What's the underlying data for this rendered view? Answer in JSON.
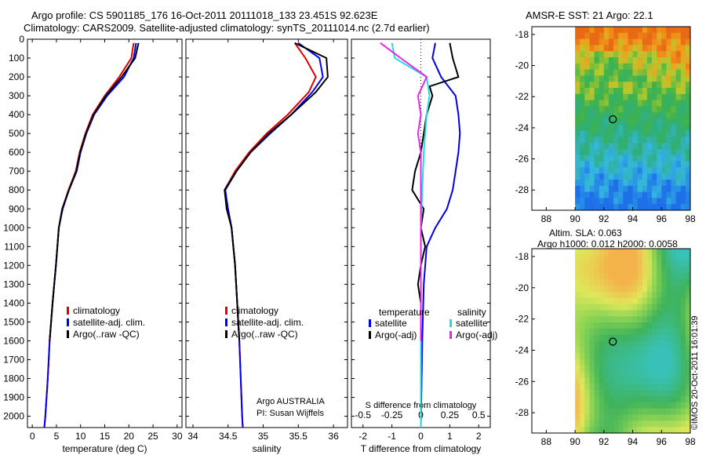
{
  "header": {
    "line1": "Argo profile: CS 5901185_176 16-Oct-2011 20111018_133 23.451S 92.623E",
    "line2": "Climatology: CARS2009. Satellite-adjusted climatology: synTS_20111014.nc (2.7d earlier)"
  },
  "stamp": "©IMOS 20-Oct-2011 16:01:39",
  "colors": {
    "climatology": "#e00000",
    "satellite": "#0000ee",
    "argo": "#000000",
    "salinity_sat": "#22dddd",
    "salinity_argo": "#ee22ee"
  },
  "chart_data": [
    {
      "type": "line",
      "xlabel": "temperature (deg C)",
      "xticks": [
        "0",
        "5",
        "10",
        "15",
        "20",
        "25",
        "30"
      ],
      "xlim": [
        -1,
        31
      ],
      "ylim": [
        0,
        2060
      ],
      "yticks": [
        "0",
        "100",
        "200",
        "300",
        "400",
        "500",
        "600",
        "700",
        "800",
        "900",
        "1000",
        "1100",
        "1200",
        "1300",
        "1400",
        "1500",
        "1600",
        "1700",
        "1800",
        "1900",
        "2000"
      ],
      "legend": [
        "climatology",
        "satellite-adj. clim.",
        "Argo(..raw -QC)"
      ],
      "series": [
        {
          "name": "climatology",
          "points": [
            [
              21,
              20
            ],
            [
              20.5,
              100
            ],
            [
              18,
              200
            ],
            [
              15,
              300
            ],
            [
              12.5,
              400
            ],
            [
              11,
              500
            ],
            [
              9.8,
              600
            ],
            [
              9,
              700
            ],
            [
              7.5,
              800
            ],
            [
              6.2,
              900
            ],
            [
              5.5,
              1000
            ],
            [
              4.9,
              1200
            ],
            [
              4.2,
              1400
            ],
            [
              3.6,
              1600
            ],
            [
              3.2,
              1800
            ],
            [
              2.7,
              2000
            ],
            [
              2.5,
              2060
            ]
          ]
        },
        {
          "name": "satellite-adj. clim.",
          "points": [
            [
              21.5,
              20
            ],
            [
              21,
              100
            ],
            [
              19,
              200
            ],
            [
              15.5,
              300
            ],
            [
              12.8,
              400
            ],
            [
              11.2,
              500
            ],
            [
              10,
              600
            ],
            [
              9.2,
              700
            ],
            [
              7.6,
              800
            ],
            [
              6.3,
              900
            ],
            [
              5.5,
              1000
            ],
            [
              4.9,
              1200
            ],
            [
              4.2,
              1400
            ],
            [
              3.6,
              1600
            ],
            [
              3.2,
              1800
            ],
            [
              2.7,
              2000
            ],
            [
              2.5,
              2060
            ]
          ]
        },
        {
          "name": "Argo(..raw -QC)",
          "points": [
            [
              22,
              20
            ],
            [
              21.3,
              100
            ],
            [
              18.5,
              200
            ],
            [
              15.2,
              300
            ],
            [
              12.7,
              400
            ],
            [
              11.1,
              500
            ],
            [
              9.9,
              600
            ],
            [
              9.1,
              700
            ],
            [
              7.6,
              800
            ],
            [
              6.2,
              900
            ],
            [
              5.5,
              1000
            ],
            [
              4.9,
              1200
            ],
            [
              4.2,
              1400
            ],
            [
              3.6,
              1600
            ]
          ]
        }
      ]
    },
    {
      "type": "line",
      "xlabel": "salinity",
      "xticks": [
        "34",
        "34.5",
        "35",
        "35.5",
        "36"
      ],
      "xlim": [
        33.9,
        36.2
      ],
      "ylim": [
        0,
        2060
      ],
      "legend": [
        "climatology",
        "satellite-adj. clim.",
        "Argo(..raw -QC)"
      ],
      "annotation": [
        "Argo AUSTRALIA",
        "PI: Susan Wijffels"
      ],
      "series": [
        {
          "name": "climatology",
          "points": [
            [
              35.45,
              20
            ],
            [
              35.6,
              100
            ],
            [
              35.75,
              200
            ],
            [
              35.65,
              280
            ],
            [
              35.35,
              400
            ],
            [
              35.05,
              500
            ],
            [
              34.8,
              600
            ],
            [
              34.6,
              700
            ],
            [
              34.45,
              800
            ],
            [
              34.5,
              900
            ],
            [
              34.55,
              1000
            ],
            [
              34.6,
              1200
            ],
            [
              34.63,
              1400
            ],
            [
              34.66,
              1600
            ],
            [
              34.68,
              1800
            ],
            [
              34.7,
              2000
            ],
            [
              34.71,
              2060
            ]
          ]
        },
        {
          "name": "satellite-adj. clim.",
          "points": [
            [
              35.5,
              20
            ],
            [
              35.8,
              100
            ],
            [
              35.85,
              200
            ],
            [
              35.7,
              280
            ],
            [
              35.4,
              400
            ],
            [
              35.1,
              500
            ],
            [
              34.82,
              600
            ],
            [
              34.62,
              700
            ],
            [
              34.46,
              800
            ],
            [
              34.5,
              900
            ],
            [
              34.55,
              1000
            ],
            [
              34.6,
              1200
            ],
            [
              34.63,
              1400
            ],
            [
              34.66,
              1600
            ],
            [
              34.68,
              1800
            ],
            [
              34.7,
              2000
            ],
            [
              34.71,
              2060
            ]
          ]
        },
        {
          "name": "Argo(..raw -QC)",
          "points": [
            [
              35.45,
              20
            ],
            [
              35.9,
              100
            ],
            [
              35.92,
              200
            ],
            [
              35.75,
              280
            ],
            [
              35.4,
              400
            ],
            [
              35.08,
              500
            ],
            [
              34.82,
              600
            ],
            [
              34.62,
              700
            ],
            [
              34.45,
              800
            ],
            [
              34.48,
              900
            ],
            [
              34.55,
              1000
            ],
            [
              34.6,
              1200
            ],
            [
              34.63,
              1400
            ],
            [
              34.66,
              1600
            ]
          ]
        }
      ]
    },
    {
      "type": "line",
      "xlabel": "T difference from climatology",
      "xticks": [
        "-2",
        "-1",
        "0",
        "1",
        "2"
      ],
      "xlim": [
        -2.4,
        2.4
      ],
      "top_xlabel": "S difference from climatology",
      "top_xticks": [
        "-0.5",
        "-0.25",
        "0",
        "0.25",
        "0.5"
      ],
      "ylim": [
        0,
        2060
      ],
      "legend_temperature_title": "temperature",
      "legend_salinity_title": "salinity",
      "legend_temperature": [
        "satellite",
        "Argo(-adj)"
      ],
      "legend_salinity": [
        "satellite",
        "Argo(-adj)"
      ],
      "series": [
        {
          "name": "satellite",
          "points": [
            [
              0.5,
              20
            ],
            [
              0.4,
              100
            ],
            [
              0.7,
              200
            ],
            [
              1.2,
              300
            ],
            [
              1.3,
              400
            ],
            [
              1.35,
              500
            ],
            [
              1.3,
              600
            ],
            [
              1.2,
              700
            ],
            [
              1.1,
              800
            ],
            [
              0.9,
              900
            ],
            [
              0.5,
              1000
            ],
            [
              0.2,
              1100
            ],
            [
              0.1,
              1300
            ],
            [
              0.05,
              1600
            ],
            [
              0,
              2060
            ]
          ]
        },
        {
          "name": "Argo(-adj)",
          "points": [
            [
              1,
              20
            ],
            [
              1.1,
              100
            ],
            [
              1.3,
              200
            ],
            [
              0.3,
              250
            ],
            [
              0.4,
              300
            ],
            [
              0.2,
              400
            ],
            [
              0.1,
              500
            ],
            [
              0,
              600
            ],
            [
              -0.2,
              700
            ],
            [
              -0.3,
              800
            ],
            [
              0.1,
              900
            ],
            [
              0,
              1000
            ],
            [
              0.15,
              1100
            ],
            [
              0,
              1200
            ],
            [
              -0.1,
              1300
            ],
            [
              0,
              1400
            ],
            [
              0,
              1600
            ]
          ]
        },
        {
          "name": "satellite",
          "points": [
            [
              -1,
              20
            ],
            [
              -0.9,
              100
            ],
            [
              0.2,
              200
            ],
            [
              0.3,
              300
            ],
            [
              0.2,
              400
            ],
            [
              0.15,
              500
            ],
            [
              0.1,
              600
            ],
            [
              0.05,
              800
            ],
            [
              0,
              1000
            ],
            [
              0,
              2060
            ]
          ]
        },
        {
          "name": "Argo(-adj)",
          "points": [
            [
              -1.4,
              20
            ],
            [
              -0.7,
              100
            ],
            [
              0.2,
              200
            ],
            [
              -0.1,
              300
            ],
            [
              0,
              400
            ],
            [
              -0.1,
              500
            ],
            [
              0,
              600
            ],
            [
              0,
              800
            ],
            [
              0,
              1000
            ],
            [
              0,
              1600
            ]
          ]
        }
      ]
    },
    {
      "type": "heatmap",
      "title": "AMSR-E SST: 21 Argo: 22.1",
      "xticks": [
        "88",
        "90",
        "92",
        "94",
        "96",
        "98"
      ],
      "yticks": [
        "-18",
        "-20",
        "-22",
        "-24",
        "-26",
        "-28"
      ],
      "xlim": [
        87,
        98
      ],
      "ylim": [
        -29.3,
        -17.5
      ],
      "argo_position": [
        92.623,
        -23.451
      ]
    },
    {
      "type": "heatmap",
      "title_line1": "Altim. SLA: 0.063",
      "title_line2": "Argo h1000: 0.012 h2000: 0.0058",
      "xticks": [
        "88",
        "90",
        "92",
        "94",
        "96",
        "98"
      ],
      "yticks": [
        "-18",
        "-20",
        "-22",
        "-24",
        "-26",
        "-28"
      ],
      "xlim": [
        87,
        98
      ],
      "ylim": [
        -29.3,
        -17.5
      ],
      "argo_position": [
        92.623,
        -23.451
      ]
    }
  ]
}
